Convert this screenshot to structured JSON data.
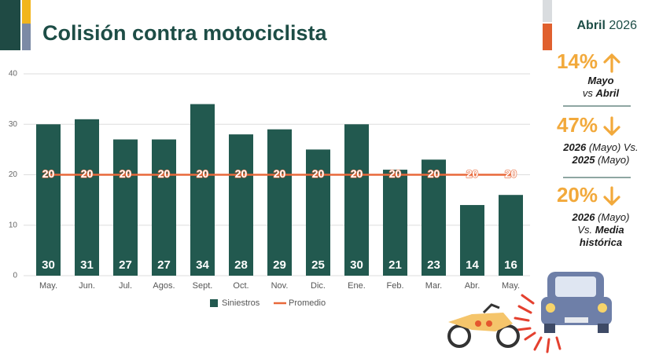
{
  "header": {
    "title": "Colisión contra motociclista",
    "period_month": "Abril",
    "period_year": "2026"
  },
  "chart_data": {
    "type": "bar",
    "categories": [
      "May.",
      "Jun.",
      "Jul.",
      "Agos.",
      "Sept.",
      "Oct.",
      "Nov.",
      "Dic.",
      "Ene.",
      "Feb.",
      "Mar.",
      "Abr.",
      "May."
    ],
    "series": [
      {
        "name": "Siniestros",
        "type": "bar",
        "color": "#22594f",
        "values": [
          30,
          31,
          27,
          27,
          34,
          28,
          29,
          25,
          30,
          21,
          23,
          14,
          16
        ]
      },
      {
        "name": "Promedio",
        "type": "line",
        "color": "#e8683a",
        "values": [
          20,
          20,
          20,
          20,
          20,
          20,
          20,
          20,
          20,
          20,
          20,
          20,
          20
        ]
      }
    ],
    "ylim": [
      0,
      40
    ],
    "yticks": [
      0,
      10,
      20,
      30,
      40
    ],
    "grid": true,
    "legend": "bottom"
  },
  "kpis": [
    {
      "value": "14%",
      "direction": "up",
      "lines": [
        [
          {
            "text": "Mayo",
            "bold": true
          }
        ],
        [
          {
            "text": "vs ",
            "bold": false
          },
          {
            "text": "Abril",
            "bold": true
          }
        ]
      ]
    },
    {
      "value": "47%",
      "direction": "down",
      "lines": [
        [
          {
            "text": "2026",
            "bold": true
          },
          {
            "text": " (Mayo) Vs.",
            "bold": false
          }
        ],
        [
          {
            "text": "2025",
            "bold": true
          },
          {
            "text": " (Mayo)",
            "bold": false
          }
        ]
      ]
    },
    {
      "value": "20%",
      "direction": "down",
      "lines": [
        [
          {
            "text": "2026",
            "bold": true
          },
          {
            "text": " (Mayo)",
            "bold": false
          }
        ],
        [
          {
            "text": "Vs. ",
            "bold": false
          },
          {
            "text": "Media",
            "bold": true
          }
        ],
        [
          {
            "text": "histórica",
            "bold": true
          }
        ]
      ]
    }
  ]
}
